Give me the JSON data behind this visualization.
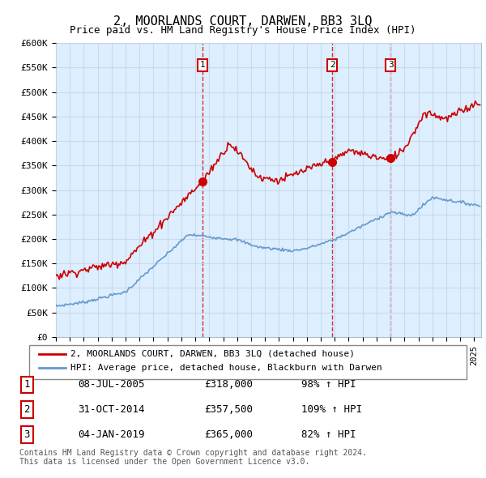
{
  "title": "2, MOORLANDS COURT, DARWEN, BB3 3LQ",
  "subtitle": "Price paid vs. HM Land Registry's House Price Index (HPI)",
  "ylabel_ticks": [
    "£0",
    "£50K",
    "£100K",
    "£150K",
    "£200K",
    "£250K",
    "£300K",
    "£350K",
    "£400K",
    "£450K",
    "£500K",
    "£550K",
    "£600K"
  ],
  "ytick_values": [
    0,
    50000,
    100000,
    150000,
    200000,
    250000,
    300000,
    350000,
    400000,
    450000,
    500000,
    550000,
    600000
  ],
  "ylim": [
    0,
    600000
  ],
  "xlim_start": 1995.0,
  "xlim_end": 2025.5,
  "transactions": [
    {
      "label": "1",
      "date_str": "08-JUL-2005",
      "date_x": 2005.52,
      "price": 318000,
      "pct": "98%",
      "dir": "↑"
    },
    {
      "label": "2",
      "date_str": "31-OCT-2014",
      "date_x": 2014.83,
      "price": 357500,
      "pct": "109%",
      "dir": "↑"
    },
    {
      "label": "3",
      "date_str": "04-JAN-2019",
      "date_x": 2019.01,
      "price": 365000,
      "pct": "82%",
      "dir": "↑"
    }
  ],
  "transaction_table": [
    {
      "num": "1",
      "date": "08-JUL-2005",
      "price": "£318,000",
      "info": "98% ↑ HPI"
    },
    {
      "num": "2",
      "date": "31-OCT-2014",
      "price": "£357,500",
      "info": "109% ↑ HPI"
    },
    {
      "num": "3",
      "date": "04-JAN-2019",
      "price": "£365,000",
      "info": "82% ↑ HPI"
    }
  ],
  "legend_property": "2, MOORLANDS COURT, DARWEN, BB3 3LQ (detached house)",
  "legend_hpi": "HPI: Average price, detached house, Blackburn with Darwen",
  "footer": "Contains HM Land Registry data © Crown copyright and database right 2024.\nThis data is licensed under the Open Government Licence v3.0.",
  "property_line_color": "#cc0000",
  "hpi_line_color": "#6699cc",
  "vline_color": "#cc0000",
  "grid_color": "#c8d8e8",
  "bg_chart_color": "#ddeeff",
  "background_color": "#ffffff",
  "label_box_color": "#cc0000"
}
